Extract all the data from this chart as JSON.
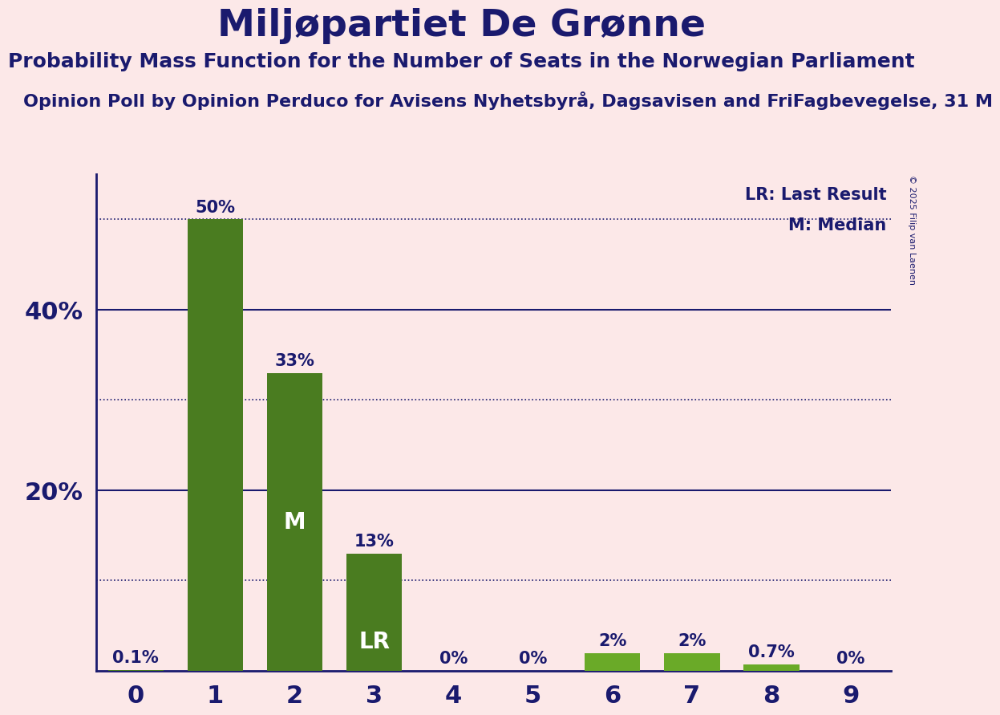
{
  "title": "Miljøpartiet De Grønne",
  "subtitle": "Probability Mass Function for the Number of Seats in the Norwegian Parliament",
  "subsubtitle": "Opinion Poll by Opinion Perduco for Avisens Nyhetsbyrå, Dagsavisen and FriFagbevegelse, 31 M",
  "copyright": "© 2025 Filip van Laenen",
  "categories": [
    0,
    1,
    2,
    3,
    4,
    5,
    6,
    7,
    8,
    9
  ],
  "values": [
    0.1,
    50.0,
    33.0,
    13.0,
    0.0,
    0.0,
    2.0,
    2.0,
    0.7,
    0.0
  ],
  "bar_colors": [
    "#4a7c20",
    "#4a7c20",
    "#4a7c20",
    "#4a7c20",
    "#4a7c20",
    "#4a7c20",
    "#6aaa28",
    "#6aaa28",
    "#6aaa28",
    "#4a7c20"
  ],
  "bar_labels": [
    "0.1%",
    "50%",
    "33%",
    "13%",
    "0%",
    "0%",
    "2%",
    "2%",
    "0.7%",
    "0%"
  ],
  "inside_labels": {
    "2": "M",
    "3": "LR"
  },
  "background_color": "#fce8e8",
  "title_color": "#1a1a6e",
  "axis_color": "#1a1a6e",
  "bar_label_color": "#1a1a6e",
  "inside_label_color": "#ffffff",
  "annotation_color": "#1a1a6e",
  "solid_gridlines": [
    20,
    40
  ],
  "dotted_gridlines": [
    10,
    30,
    50
  ],
  "legend_text": [
    "LR: Last Result",
    "M: Median"
  ],
  "ylim": [
    0,
    55
  ],
  "title_fontsize": 34,
  "subtitle_fontsize": 18,
  "subsubtitle_fontsize": 16,
  "ytick_positions": [
    20,
    40
  ],
  "ytick_labels": [
    "20%",
    "40%"
  ]
}
